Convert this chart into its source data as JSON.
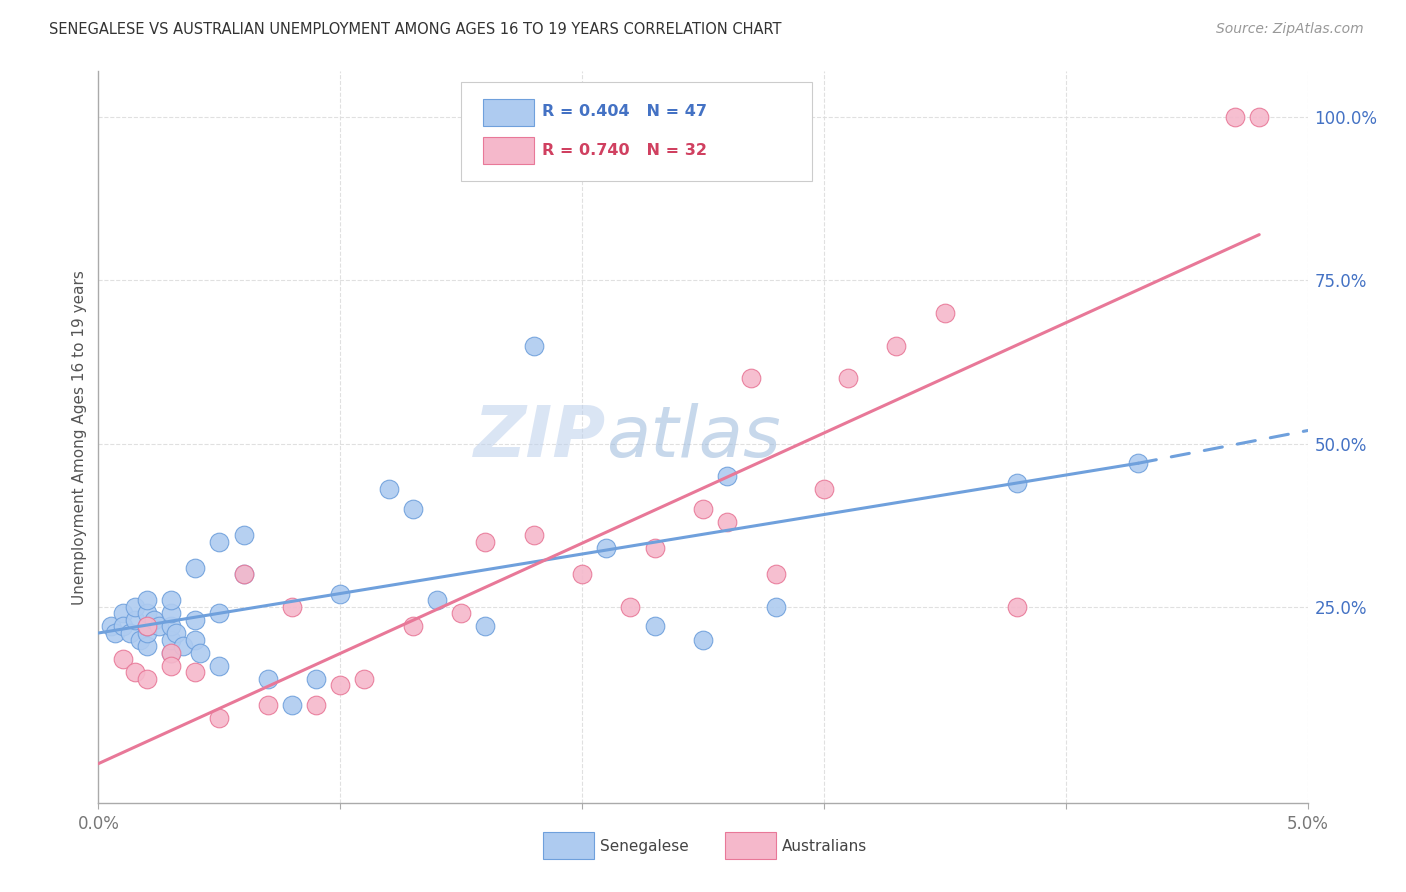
{
  "title": "SENEGALESE VS AUSTRALIAN UNEMPLOYMENT AMONG AGES 16 TO 19 YEARS CORRELATION CHART",
  "source": "Source: ZipAtlas.com",
  "ylabel": "Unemployment Among Ages 16 to 19 years",
  "legend_blue_r": "R = 0.404",
  "legend_blue_n": "N = 47",
  "legend_pink_r": "R = 0.740",
  "legend_pink_n": "N = 32",
  "legend_blue_label": "Senegalese",
  "legend_pink_label": "Australians",
  "blue_fill": "#AECBF0",
  "pink_fill": "#F5B8CB",
  "blue_edge": "#6FA0DC",
  "pink_edge": "#E87898",
  "text_blue": "#4472C4",
  "text_pink": "#D04060",
  "xlim": [
    0.0,
    0.05
  ],
  "ylim": [
    -0.05,
    1.07
  ],
  "right_yticks": [
    0.25,
    0.5,
    0.75,
    1.0
  ],
  "right_yticklabels": [
    "25.0%",
    "50.0%",
    "75.0%",
    "100.0%"
  ],
  "blue_scatter_x": [
    0.0005,
    0.0007,
    0.001,
    0.001,
    0.0013,
    0.0015,
    0.0015,
    0.0017,
    0.002,
    0.002,
    0.002,
    0.002,
    0.002,
    0.0023,
    0.0025,
    0.003,
    0.003,
    0.003,
    0.003,
    0.003,
    0.0032,
    0.0035,
    0.004,
    0.004,
    0.004,
    0.0042,
    0.005,
    0.005,
    0.005,
    0.006,
    0.006,
    0.007,
    0.008,
    0.009,
    0.01,
    0.012,
    0.013,
    0.014,
    0.016,
    0.018,
    0.021,
    0.023,
    0.025,
    0.026,
    0.028,
    0.038,
    0.043
  ],
  "blue_scatter_y": [
    0.22,
    0.21,
    0.24,
    0.22,
    0.21,
    0.23,
    0.25,
    0.2,
    0.19,
    0.21,
    0.22,
    0.24,
    0.26,
    0.23,
    0.22,
    0.18,
    0.2,
    0.22,
    0.24,
    0.26,
    0.21,
    0.19,
    0.2,
    0.23,
    0.31,
    0.18,
    0.16,
    0.24,
    0.35,
    0.3,
    0.36,
    0.14,
    0.1,
    0.14,
    0.27,
    0.43,
    0.4,
    0.26,
    0.22,
    0.65,
    0.34,
    0.22,
    0.2,
    0.45,
    0.25,
    0.44,
    0.47
  ],
  "pink_scatter_x": [
    0.001,
    0.0015,
    0.002,
    0.002,
    0.003,
    0.003,
    0.004,
    0.005,
    0.006,
    0.007,
    0.008,
    0.009,
    0.01,
    0.011,
    0.013,
    0.015,
    0.016,
    0.018,
    0.02,
    0.022,
    0.023,
    0.025,
    0.026,
    0.027,
    0.028,
    0.03,
    0.031,
    0.033,
    0.035,
    0.038,
    0.047,
    0.048
  ],
  "pink_scatter_y": [
    0.17,
    0.15,
    0.14,
    0.22,
    0.18,
    0.16,
    0.15,
    0.08,
    0.3,
    0.1,
    0.25,
    0.1,
    0.13,
    0.14,
    0.22,
    0.24,
    0.35,
    0.36,
    0.3,
    0.25,
    0.34,
    0.4,
    0.38,
    0.6,
    0.3,
    0.43,
    0.6,
    0.65,
    0.7,
    0.25,
    1.0,
    1.0
  ],
  "blue_trend": [
    0.0,
    0.21,
    0.043,
    0.47,
    0.05,
    0.52
  ],
  "pink_trend": [
    0.0,
    0.01,
    0.048,
    0.82
  ],
  "watermark_zip": "ZIP",
  "watermark_atlas": "atlas",
  "grid_color": "#DDDDDD",
  "bg_color": "#FFFFFF",
  "title_color": "#333333",
  "source_color": "#999999",
  "axis_color": "#AAAAAA",
  "tick_label_color": "#777777",
  "ylabel_color": "#555555"
}
